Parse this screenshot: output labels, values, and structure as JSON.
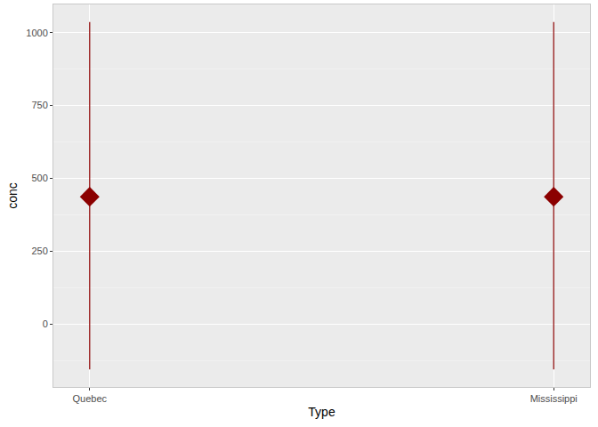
{
  "chart_data": {
    "type": "pointrange",
    "categories": [
      "Quebec",
      "Mississippi"
    ],
    "values": [
      437,
      437
    ],
    "lower": [
      -156,
      -156
    ],
    "upper": [
      1037,
      1037
    ],
    "color": "#8b0000",
    "marker": "diamond",
    "xlabel": "Type",
    "ylabel": "conc",
    "ylim": [
      -216,
      1097
    ],
    "yticks": [
      0,
      250,
      500,
      750,
      1000
    ],
    "grid": true
  }
}
